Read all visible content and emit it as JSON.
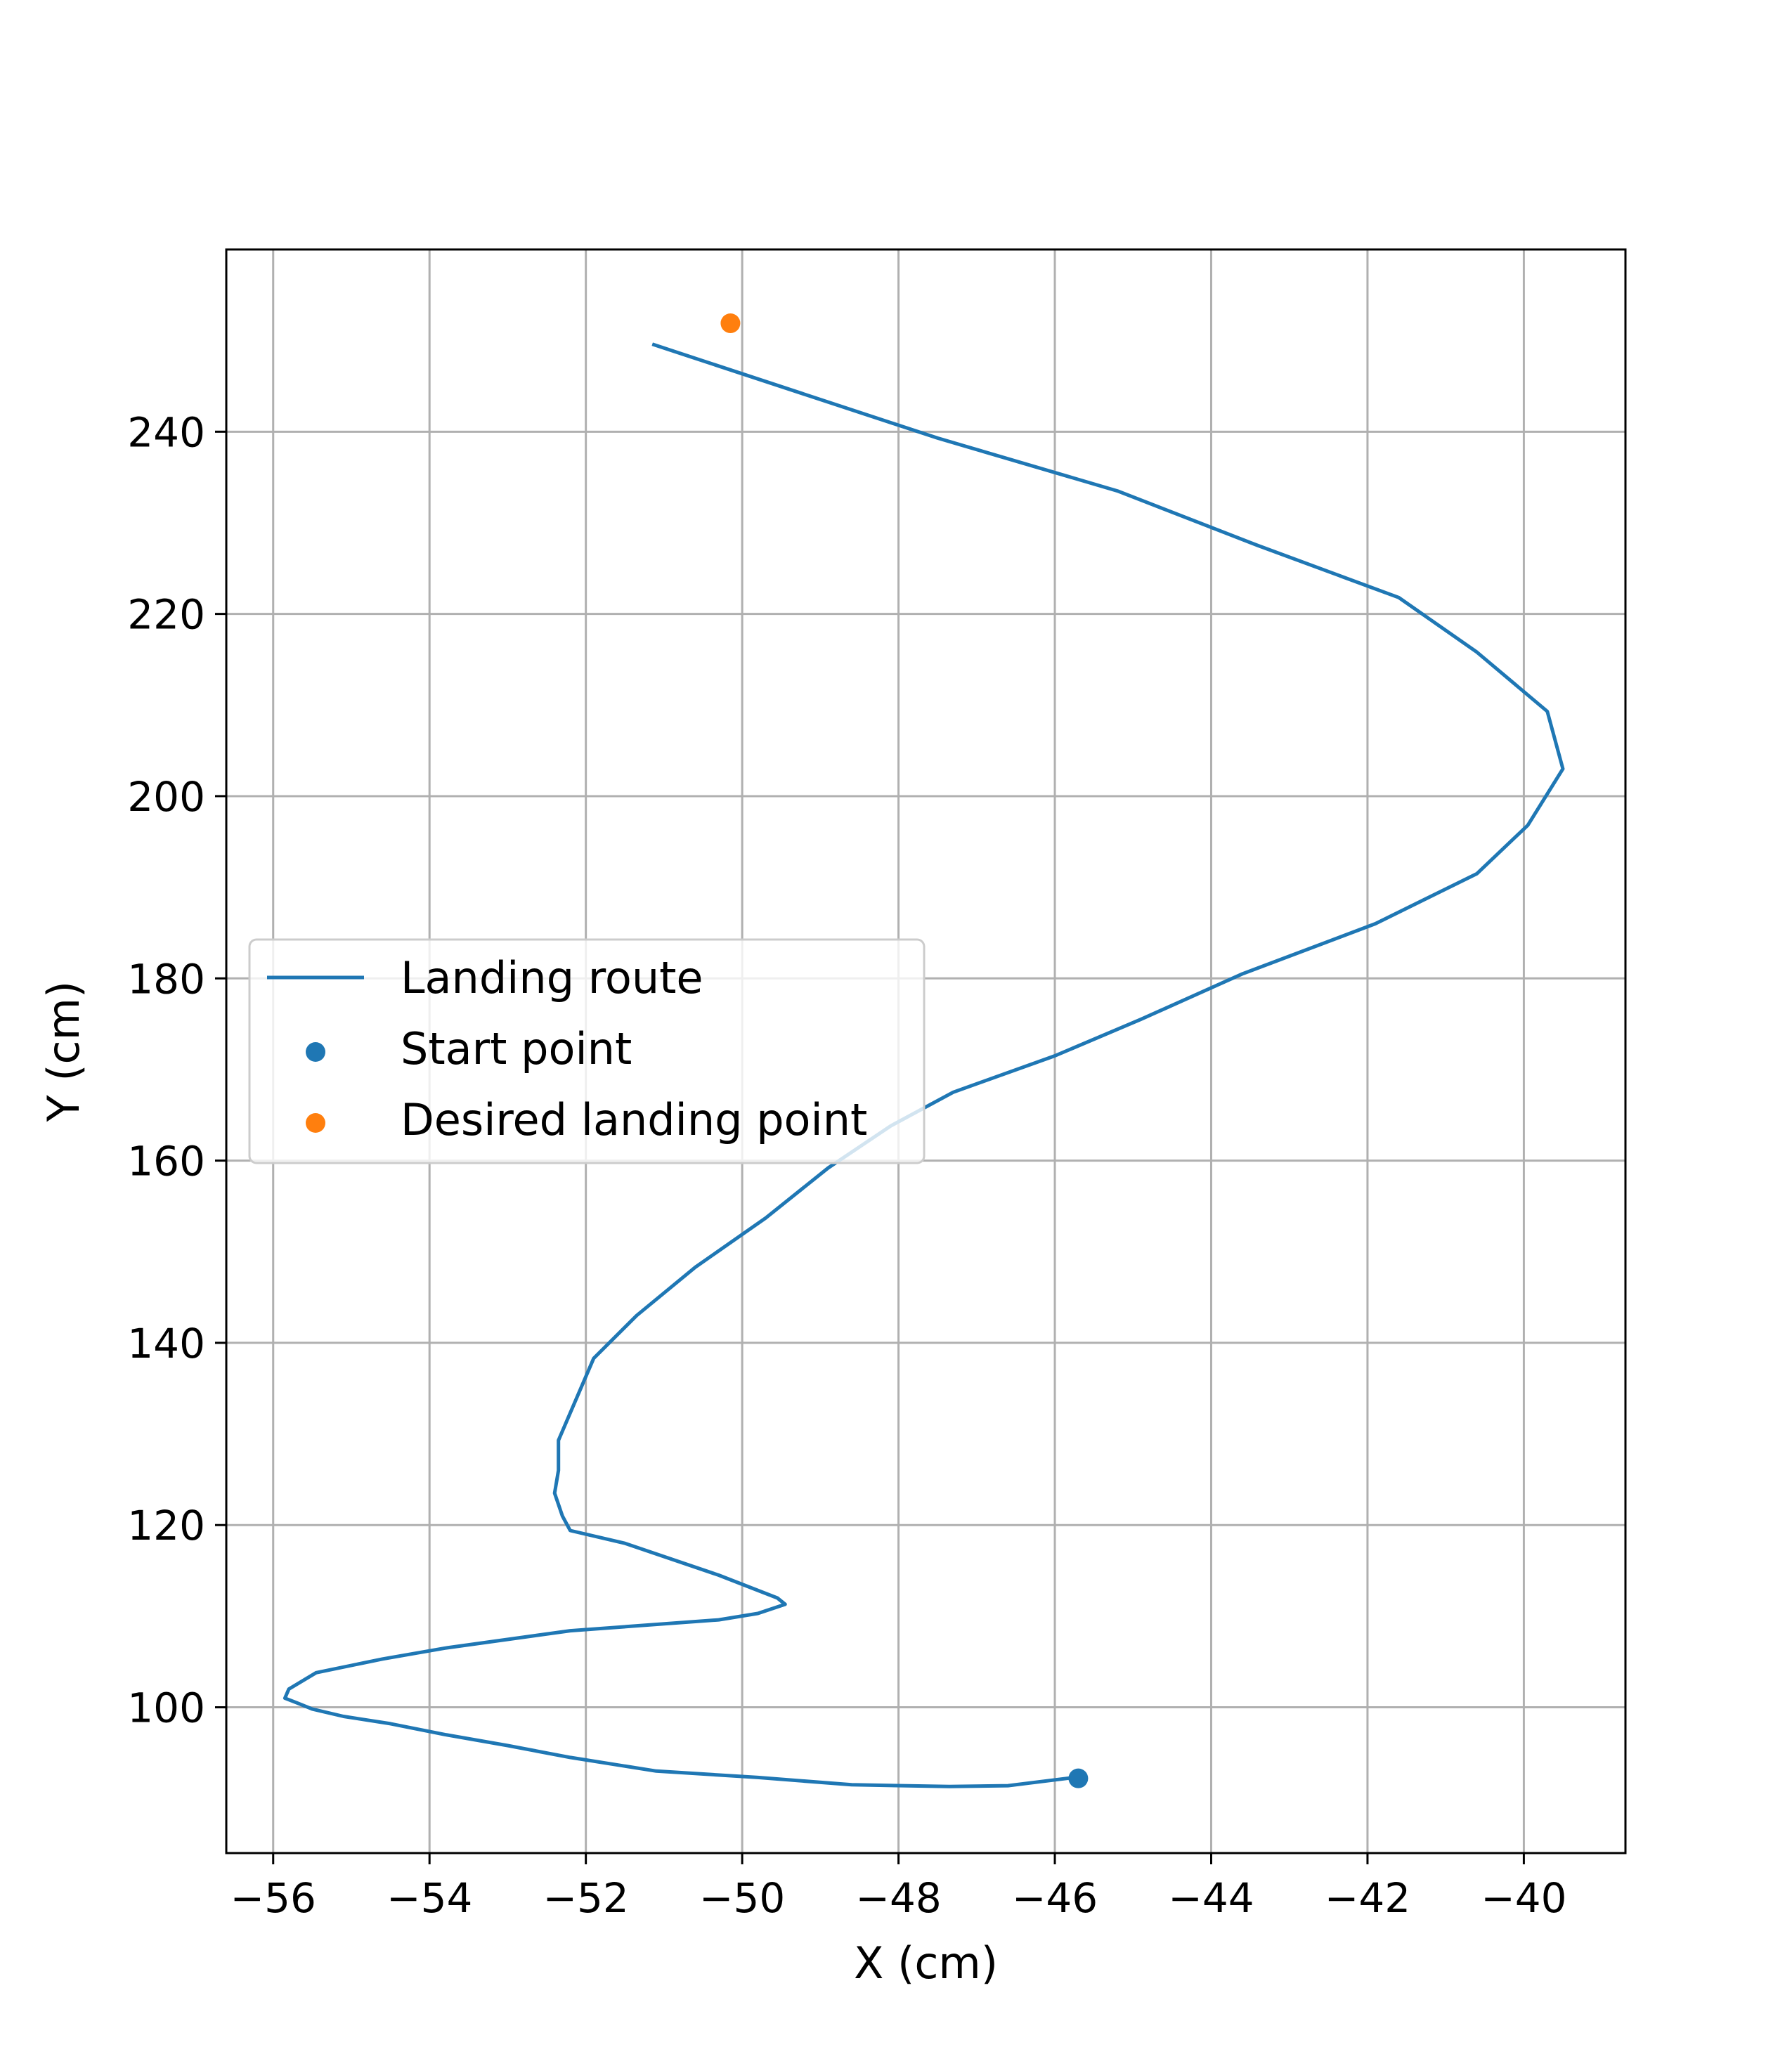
{
  "chart_data": {
    "type": "line",
    "title": "",
    "xlabel": "X (cm)",
    "ylabel": "Y (cm)",
    "xlim": [
      -56.6,
      -38.7
    ],
    "ylim": [
      84.0,
      260.0
    ],
    "x_ticks": [
      -56,
      -54,
      -52,
      -50,
      -48,
      -46,
      -44,
      -42,
      -40
    ],
    "x_tick_labels": [
      "−56",
      "−54",
      "−52",
      "−50",
      "−48",
      "−46",
      "−44",
      "−42",
      "−40"
    ],
    "y_ticks": [
      100,
      120,
      140,
      160,
      180,
      200,
      220,
      240
    ],
    "y_tick_labels": [
      "100",
      "120",
      "140",
      "160",
      "180",
      "200",
      "220",
      "240"
    ],
    "grid": true,
    "legend_position": "center-left",
    "colors": {
      "route": "#1f77b4",
      "start": "#1f77b4",
      "target": "#ff7f0e"
    },
    "series": [
      {
        "name": "Landing route",
        "kind": "line",
        "x": [
          -45.75,
          -46.6,
          -47.35,
          -48.6,
          -49.8,
          -51.1,
          -52.2,
          -53.0,
          -53.8,
          -54.5,
          -55.1,
          -55.5,
          -55.7,
          -55.85,
          -55.8,
          -55.45,
          -54.6,
          -53.8,
          -52.2,
          -50.3,
          -49.8,
          -49.45,
          -49.55,
          -50.3,
          -51.5,
          -52.2,
          -52.3,
          -52.4,
          -52.35,
          -52.35,
          -51.9,
          -51.35,
          -50.6,
          -49.7,
          -48.9,
          -48.1,
          -47.3,
          -46.0,
          -44.9,
          -43.6,
          -41.9,
          -40.6,
          -39.95,
          -39.5,
          -39.7,
          -40.6,
          -41.6,
          -43.4,
          -45.2,
          -47.5,
          -51.15
        ],
        "y": [
          92.3,
          91.4,
          91.3,
          91.5,
          92.3,
          93.0,
          94.5,
          95.8,
          97.0,
          98.2,
          99.0,
          99.8,
          100.5,
          101.0,
          102.0,
          103.8,
          105.3,
          106.5,
          108.4,
          109.6,
          110.3,
          111.3,
          112.0,
          114.5,
          118.0,
          119.4,
          121.0,
          123.5,
          126.0,
          129.3,
          138.3,
          143.0,
          148.3,
          153.7,
          159.2,
          163.8,
          167.5,
          171.5,
          175.5,
          180.5,
          186.0,
          191.5,
          196.8,
          203.0,
          209.3,
          215.8,
          221.8,
          227.5,
          233.5,
          239.3,
          249.6
        ]
      },
      {
        "name": "Start point",
        "kind": "scatter",
        "x": [
          -45.7
        ],
        "y": [
          92.2
        ]
      },
      {
        "name": "Desired landing point",
        "kind": "scatter",
        "x": [
          -50.15
        ],
        "y": [
          251.9
        ]
      }
    ]
  }
}
